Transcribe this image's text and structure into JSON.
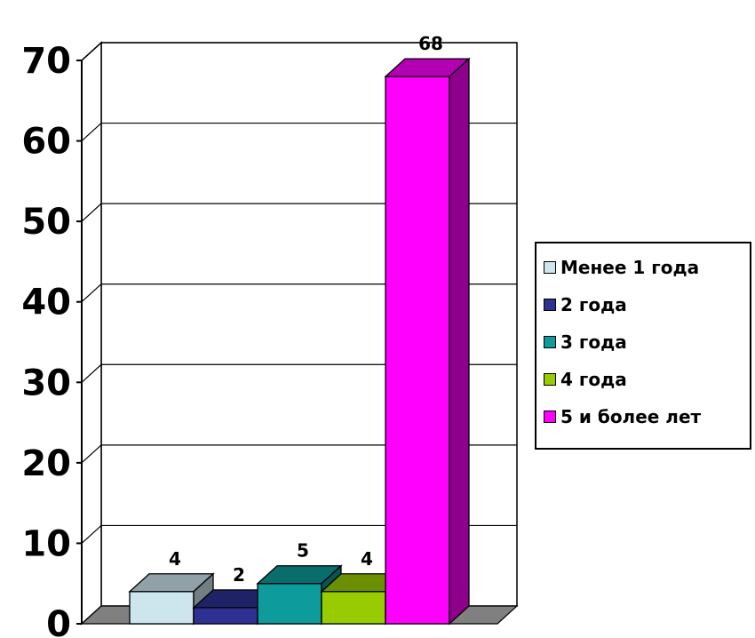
{
  "chart_data": {
    "type": "bar",
    "title": "",
    "xlabel": "",
    "ylabel": "",
    "ylim": [
      0,
      70
    ],
    "yticks": [
      "0",
      "10",
      "20",
      "30",
      "40",
      "50",
      "60",
      "70"
    ],
    "grid": true,
    "three_d": true,
    "legend_position": "right",
    "series": [
      {
        "name": "Менее 1 года",
        "value": 4,
        "label": "4",
        "color": "#cde6ee"
      },
      {
        "name": "2 года",
        "value": 2,
        "label": "2",
        "color": "#2e3192"
      },
      {
        "name": "3 года",
        "value": 5,
        "label": "5",
        "color": "#0e9b9b"
      },
      {
        "name": "4 года",
        "value": 4,
        "label": "4",
        "color": "#99cc00"
      },
      {
        "name": "5 и более лет",
        "value": 68,
        "label": "68",
        "color": "#ff00ff"
      }
    ],
    "colors": {
      "floor": "#808080",
      "wall": "#ffffff",
      "gridline": "#000000"
    }
  }
}
